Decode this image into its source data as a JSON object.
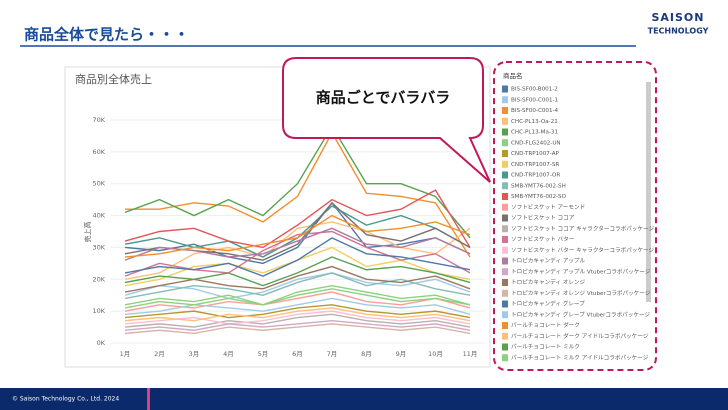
{
  "slide": {
    "title": "商品全体で見たら・・・",
    "logo_top": "SAISON",
    "logo_bottom": "TECHNOLOGY",
    "callout": "商品ごとでバラバラ",
    "footer": "© Saison Technology Co., Ltd. 2024"
  },
  "chart_data": {
    "type": "line",
    "title": "商品別全体売上",
    "y_label": "売上高",
    "legend_title": "商品名",
    "grid": true,
    "categories": [
      "1月",
      "2月",
      "3月",
      "4月",
      "5月",
      "6月",
      "7月",
      "8月",
      "9月",
      "10月",
      "11月"
    ],
    "ylim": [
      0,
      70000
    ],
    "yticks": [
      {
        "value": 0,
        "label": "0K"
      },
      {
        "value": 10000,
        "label": "10K"
      },
      {
        "value": 20000,
        "label": "20K"
      },
      {
        "value": 30000,
        "label": "30K"
      },
      {
        "value": 40000,
        "label": "40K"
      },
      {
        "value": 50000,
        "label": "50K"
      },
      {
        "value": 60000,
        "label": "60K"
      },
      {
        "value": 70000,
        "label": "70K"
      }
    ],
    "series": [
      {
        "name": "BIS-SF00-B001-2",
        "color": "#4e79a7",
        "values": [
          30000,
          29000,
          31000,
          27000,
          25000,
          30000,
          44000,
          30000,
          31000,
          33000,
          28000
        ]
      },
      {
        "name": "BIS-SF00-C001-1",
        "color": "#a0cbe8",
        "values": [
          15000,
          18000,
          17000,
          14000,
          16000,
          20000,
          22000,
          19000,
          18000,
          20000,
          16000
        ]
      },
      {
        "name": "BIS-SF00-C001-4",
        "color": "#f28e2b",
        "values": [
          42000,
          42000,
          44000,
          43000,
          38000,
          46000,
          66000,
          47000,
          46000,
          44000,
          27000
        ]
      },
      {
        "name": "CHC-PL13-Oa-21",
        "color": "#ffbe7d",
        "values": [
          20000,
          22000,
          28000,
          30000,
          27000,
          36000,
          38000,
          35000,
          30000,
          28000,
          36000
        ]
      },
      {
        "name": "CHC-PL13-Ma-31",
        "color": "#59a14f",
        "values": [
          41000,
          45000,
          40000,
          45000,
          40000,
          50000,
          68000,
          50000,
          50000,
          46000,
          33000
        ]
      },
      {
        "name": "CND-FLG2402-UN",
        "color": "#8cd17d",
        "values": [
          12000,
          14000,
          13000,
          15000,
          12000,
          16000,
          18000,
          16000,
          14000,
          15000,
          12000
        ]
      },
      {
        "name": "CND-TRP1007-AP",
        "color": "#b6992d",
        "values": [
          8000,
          9000,
          10000,
          8000,
          9000,
          11000,
          12000,
          10000,
          9000,
          10000,
          8000
        ]
      },
      {
        "name": "CND-TRP1007-SR",
        "color": "#f1ce63",
        "values": [
          18000,
          20000,
          24000,
          25000,
          22000,
          26000,
          30000,
          24000,
          26000,
          22000,
          20000
        ]
      },
      {
        "name": "CND-TRP1007-OR",
        "color": "#499894",
        "values": [
          31000,
          33000,
          30000,
          32000,
          27000,
          33000,
          43000,
          37000,
          40000,
          36000,
          30000
        ]
      },
      {
        "name": "SMB-YMT76-002-SH",
        "color": "#86bcb6",
        "values": [
          14000,
          16000,
          18000,
          17000,
          15000,
          19000,
          22000,
          18000,
          20000,
          17000,
          15000
        ]
      },
      {
        "name": "SMB-YMT76-002-SO",
        "color": "#e15759",
        "values": [
          32000,
          35000,
          36000,
          32000,
          30000,
          37000,
          45000,
          40000,
          42000,
          48000,
          30000
        ]
      },
      {
        "name": "ソフトビスケット アーモンド",
        "color": "#ff9d9a",
        "values": [
          10000,
          12000,
          11000,
          13000,
          12000,
          14000,
          16000,
          13000,
          12000,
          14000,
          11000
        ]
      },
      {
        "name": "ソフトビスケット ココア",
        "color": "#79706e",
        "values": [
          28000,
          30000,
          29000,
          28000,
          26000,
          31000,
          44000,
          34000,
          32000,
          36000,
          30000
        ]
      },
      {
        "name": "ソフトビスケット ココア キャラクターコラボパッケージ",
        "color": "#bab0ac",
        "values": [
          5000,
          6000,
          5000,
          7000,
          6000,
          8000,
          9000,
          7000,
          6000,
          7000,
          5000
        ]
      },
      {
        "name": "ソフトビスケット バター",
        "color": "#d37295",
        "values": [
          21000,
          25000,
          23000,
          22000,
          29000,
          34000,
          35000,
          30000,
          26000,
          28000,
          22000
        ]
      },
      {
        "name": "ソフトビスケット バター キャラクターコラボパッケージ",
        "color": "#fabfd2",
        "values": [
          6000,
          7000,
          8000,
          6000,
          7000,
          9000,
          10000,
          8000,
          7000,
          8000,
          6000
        ]
      },
      {
        "name": "トロピカキャンディ アップル",
        "color": "#b07aa1",
        "values": [
          26000,
          30000,
          29000,
          27000,
          28000,
          32000,
          36000,
          31000,
          30000,
          33000,
          28000
        ]
      },
      {
        "name": "トロピカキャンディ アップル Vtuberコラボパッケージ",
        "color": "#d4a6c8",
        "values": [
          4000,
          5000,
          4000,
          6000,
          5000,
          6000,
          7000,
          6000,
          5000,
          6000,
          4000
        ]
      },
      {
        "name": "トロピカキャンディ オレンジ",
        "color": "#9d7660",
        "values": [
          16000,
          18000,
          20000,
          18000,
          17000,
          21000,
          24000,
          20000,
          19000,
          21000,
          17000
        ]
      },
      {
        "name": "トロピカキャンディ オレンジ Vtuberコラボパッケージ",
        "color": "#d7b5a6",
        "values": [
          3000,
          4000,
          3000,
          5000,
          4000,
          5000,
          6000,
          5000,
          4000,
          5000,
          3000
        ]
      },
      {
        "name": "トロピカキャンディ グレープ",
        "color": "#4e79a7",
        "values": [
          22000,
          24000,
          23000,
          25000,
          21000,
          26000,
          33000,
          28000,
          27000,
          25000,
          23000
        ]
      },
      {
        "name": "トロピカキャンディ グレープ Vtuberコラボパッケージ",
        "color": "#a0cbe8",
        "values": [
          9000,
          10000,
          12000,
          11000,
          10000,
          12000,
          14000,
          12000,
          11000,
          12000,
          9000
        ]
      },
      {
        "name": "パールチョコレート ダーク",
        "color": "#f28e2b",
        "values": [
          27000,
          28000,
          30000,
          29000,
          31000,
          33000,
          40000,
          35000,
          36000,
          38000,
          34000
        ]
      },
      {
        "name": "パールチョコレート ダーク アイドルコラボパッケージ",
        "color": "#ffbe7d",
        "values": [
          7000,
          8000,
          7000,
          9000,
          8000,
          10000,
          11000,
          9000,
          8000,
          9000,
          7000
        ]
      },
      {
        "name": "パールチョコレート ミルク",
        "color": "#59a14f",
        "values": [
          19000,
          21000,
          20000,
          22000,
          18000,
          22000,
          27000,
          23000,
          24000,
          22000,
          19000
        ]
      },
      {
        "name": "パールチョコレート ミルク アイドルコラボパッケージ",
        "color": "#8cd17d",
        "values": [
          11000,
          13000,
          12000,
          14000,
          12000,
          15000,
          17000,
          15000,
          13000,
          14000,
          12000
        ]
      }
    ]
  }
}
